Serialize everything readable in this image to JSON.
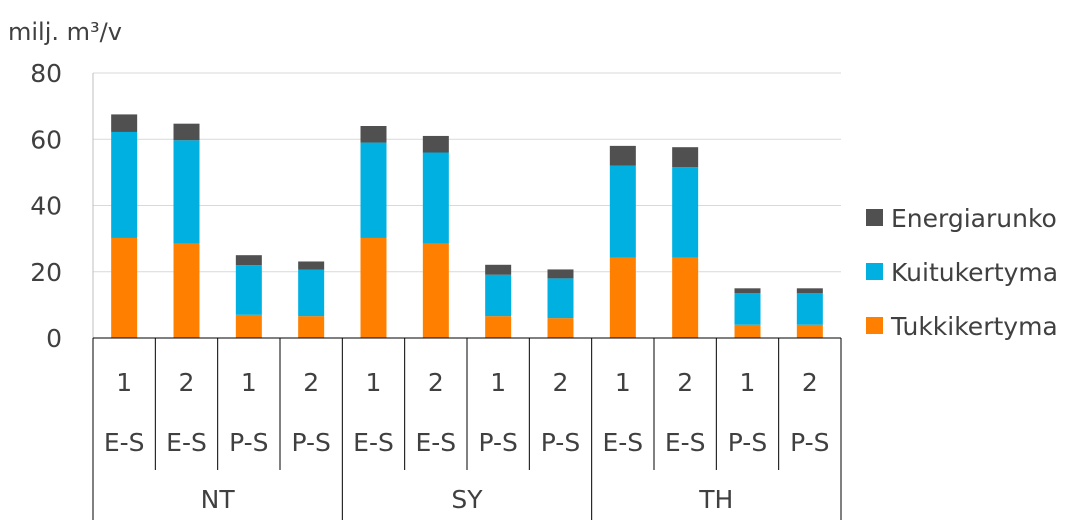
{
  "chart_data": {
    "type": "bar",
    "stacked": true,
    "ylabel": "milj. m³/v",
    "ylim": [
      0,
      80
    ],
    "yticks": [
      0,
      20,
      40,
      60,
      80
    ],
    "grid": true,
    "legend_position": "right",
    "categories": [
      {
        "level1": "1",
        "level2": "E-S",
        "level3": "NT"
      },
      {
        "level1": "2",
        "level2": "E-S",
        "level3": "NT"
      },
      {
        "level1": "1",
        "level2": "P-S",
        "level3": "NT"
      },
      {
        "level1": "2",
        "level2": "P-S",
        "level3": "NT"
      },
      {
        "level1": "1",
        "level2": "E-S",
        "level3": "SY"
      },
      {
        "level1": "2",
        "level2": "E-S",
        "level3": "SY"
      },
      {
        "level1": "1",
        "level2": "P-S",
        "level3": "SY"
      },
      {
        "level1": "2",
        "level2": "P-S",
        "level3": "SY"
      },
      {
        "level1": "1",
        "level2": "E-S",
        "level3": "TH"
      },
      {
        "level1": "2",
        "level2": "E-S",
        "level3": "TH"
      },
      {
        "level1": "1",
        "level2": "P-S",
        "level3": "TH"
      },
      {
        "level1": "2",
        "level2": "P-S",
        "level3": "TH"
      }
    ],
    "groups": [
      "NT",
      "SY",
      "TH"
    ],
    "series": [
      {
        "name": "Tukkikertyma",
        "color": "#FF8000",
        "values": [
          30.2,
          28.5,
          7.0,
          6.6,
          30.2,
          28.5,
          6.6,
          6.0,
          24.2,
          24.2,
          4.0,
          4.0
        ]
      },
      {
        "name": "Kuitukertyma",
        "color": "#00B0E0",
        "values": [
          32.0,
          31.2,
          15.0,
          14.0,
          28.8,
          27.5,
          12.5,
          12.0,
          27.8,
          27.4,
          9.5,
          9.5
        ]
      },
      {
        "name": "Energiarunko",
        "color": "#505050",
        "values": [
          5.3,
          5.0,
          3.0,
          2.5,
          5.0,
          5.0,
          3.0,
          2.7,
          6.0,
          6.0,
          1.5,
          1.5
        ]
      }
    ]
  }
}
